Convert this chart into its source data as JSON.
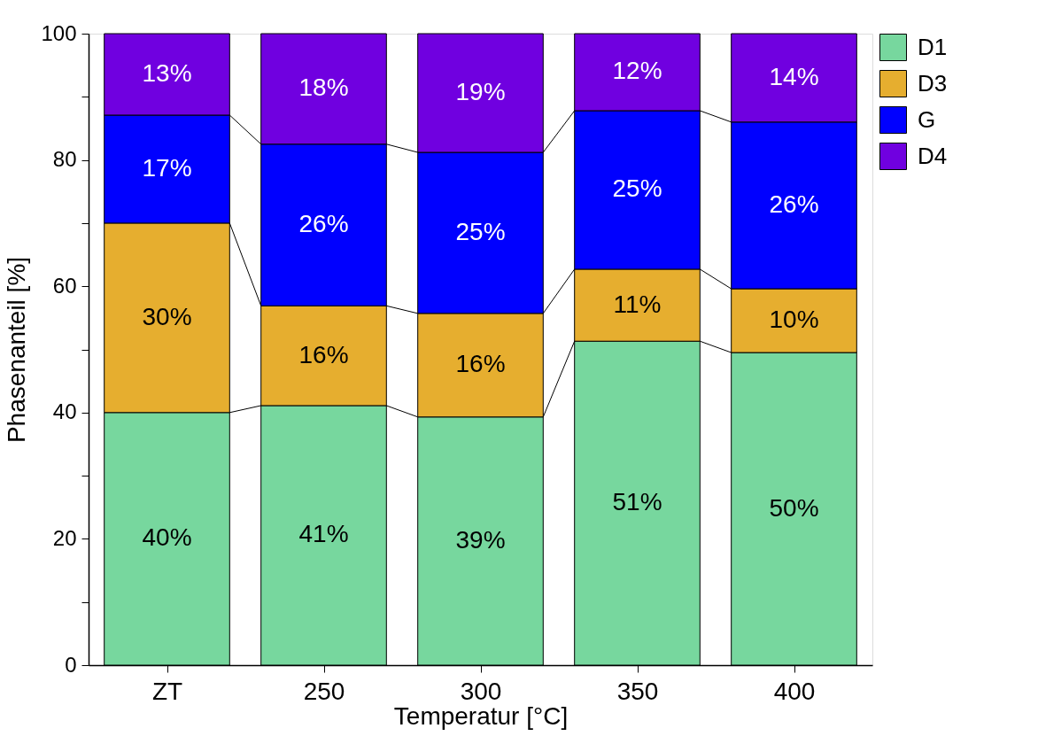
{
  "chart_data": {
    "type": "bar",
    "stacked": true,
    "xlabel": "Temperatur [°C]",
    "ylabel": "Phasenanteil [%]",
    "categories": [
      "ZT",
      "250",
      "300",
      "350",
      "400"
    ],
    "series": [
      {
        "name": "D1",
        "color": "#77d79e",
        "values": [
          40.0,
          41.1,
          39.3,
          51.3,
          49.5
        ],
        "value_labels": [
          "40%",
          "41%",
          "39%",
          "51%",
          "50%"
        ]
      },
      {
        "name": "D3",
        "color": "#e6ae2f",
        "values": [
          30.0,
          15.8,
          16.4,
          11.4,
          10.1
        ],
        "value_labels": [
          "30%",
          "16%",
          "16%",
          "11%",
          "10%"
        ]
      },
      {
        "name": "G",
        "color": "#0000ff",
        "values": [
          17.1,
          25.6,
          25.5,
          25.1,
          26.4
        ],
        "value_labels": [
          "17%",
          "26%",
          "25%",
          "25%",
          "26%"
        ]
      },
      {
        "name": "D4",
        "color": "#7000e0",
        "values": [
          12.9,
          17.5,
          18.8,
          12.2,
          14.0
        ],
        "value_labels": [
          "13%",
          "18%",
          "19%",
          "12%",
          "14%"
        ]
      }
    ],
    "ylim": [
      0,
      100
    ],
    "yticks": [
      0,
      {
        "value": 10,
        "label": null
      },
      20,
      {
        "value": 30,
        "label": null
      },
      40,
      {
        "value": 50,
        "label": null
      },
      60,
      {
        "value": 70,
        "label": null
      },
      80,
      {
        "value": 90,
        "label": null
      },
      100
    ],
    "grid": false,
    "legend": "top right"
  }
}
